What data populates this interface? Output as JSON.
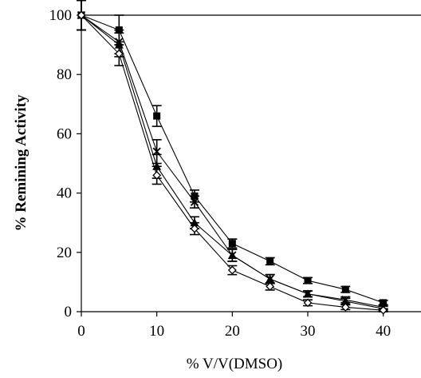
{
  "chart_data": {
    "type": "line",
    "title": "",
    "xlabel": "% V/V(DMSO)",
    "ylabel": "% Remining Activity",
    "xlim": [
      0,
      45
    ],
    "ylim": [
      0,
      100
    ],
    "xticks": [
      0,
      10,
      20,
      30,
      40
    ],
    "yticks": [
      0,
      20,
      40,
      60,
      80,
      100
    ],
    "xtick_labels": [
      "0",
      "10",
      "20",
      "30",
      "40"
    ],
    "ytick_labels": [
      "0",
      "20",
      "40",
      "60",
      "80",
      "100"
    ],
    "grid": false,
    "legend": "none",
    "x": [
      0,
      5,
      10,
      15,
      20,
      25,
      30,
      35,
      40
    ],
    "series": [
      {
        "marker": "square",
        "values": [
          100,
          95,
          66,
          39,
          23,
          17,
          10.5,
          7.5,
          3
        ],
        "error": [
          5,
          5,
          3.5,
          2,
          1.5,
          1.2,
          1,
          1,
          0.8
        ]
      },
      {
        "marker": "x",
        "values": [
          100,
          91,
          54,
          37,
          19,
          11,
          6,
          4,
          1.5
        ],
        "error": [
          5,
          4,
          4,
          2,
          2,
          1.5,
          1,
          1,
          0.8
        ]
      },
      {
        "marker": "triangle",
        "values": [
          100,
          90,
          49,
          30,
          19,
          11,
          6,
          3.5,
          1
        ],
        "error": [
          5,
          4,
          4,
          2,
          2,
          1.5,
          1,
          1,
          0.8
        ]
      },
      {
        "marker": "diamond",
        "values": [
          100,
          87,
          46,
          28,
          14,
          8.5,
          3,
          1.5,
          0.5
        ],
        "error": [
          5,
          4,
          3,
          2,
          1.5,
          1.2,
          1,
          0.8,
          0.5
        ]
      }
    ],
    "colors": {
      "line": "#000000",
      "background": "#ffffff"
    }
  }
}
